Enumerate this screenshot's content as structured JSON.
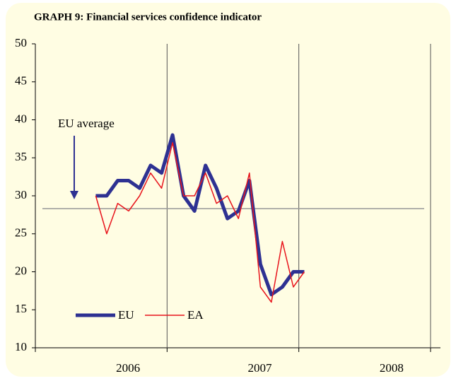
{
  "chart_data": {
    "type": "line",
    "title": "GRAPH 9: Financial services confidence indicator",
    "x": [
      5,
      6,
      7,
      8,
      9,
      10,
      11,
      12,
      13,
      14,
      15,
      16,
      17,
      18,
      19,
      20,
      21,
      22,
      23,
      24
    ],
    "xlim": [
      -0.5,
      35.5
    ],
    "xticks": [
      {
        "value": 5.5,
        "label": "2006"
      },
      {
        "value": 17.5,
        "label": "2007"
      },
      {
        "value": 29.5,
        "label": "2008"
      }
    ],
    "xgrid": [
      11.5,
      23.5,
      35.5
    ],
    "ylim": [
      10,
      50
    ],
    "yticks": [
      10,
      15,
      20,
      25,
      30,
      35,
      40,
      45,
      50
    ],
    "series": [
      {
        "name": "EU",
        "color": "#2e3192",
        "values": [
          30,
          30,
          32,
          32,
          31,
          34,
          33,
          38,
          30,
          28,
          34,
          31,
          27,
          28,
          32,
          21,
          17,
          18,
          20,
          20
        ]
      },
      {
        "name": "EA",
        "color": "#e8141c",
        "values": [
          30,
          25,
          29,
          28,
          30,
          33,
          31,
          37,
          30,
          30,
          33,
          29,
          30,
          27,
          33,
          18,
          16,
          24,
          18,
          20
        ]
      }
    ],
    "average": {
      "label": "EU average",
      "value": 28.3,
      "color": "#999999"
    }
  }
}
